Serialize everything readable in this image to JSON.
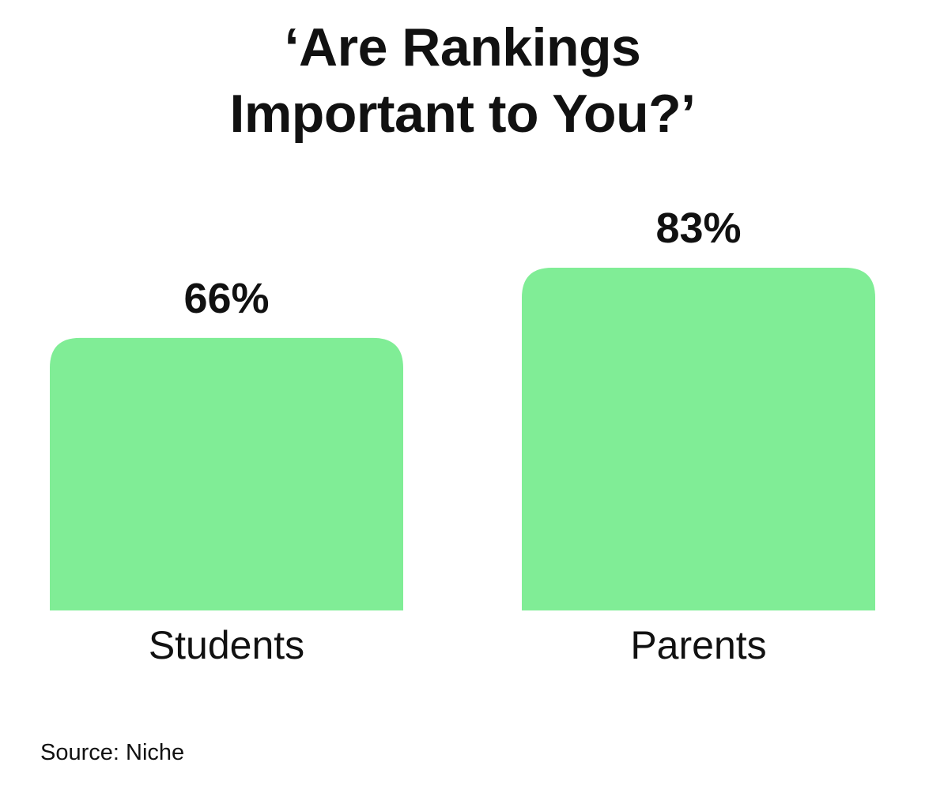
{
  "chart_data": {
    "type": "bar",
    "title_lines": [
      "‘Are Rankings",
      "Important to You?’"
    ],
    "categories": [
      "Students",
      "Parents"
    ],
    "values": [
      66,
      83
    ],
    "value_labels": [
      "66%",
      "83%"
    ],
    "ylim": [
      0,
      100
    ],
    "bar_color": "#80ED96",
    "grid": false,
    "legend": "none"
  },
  "source": "Source: Niche"
}
